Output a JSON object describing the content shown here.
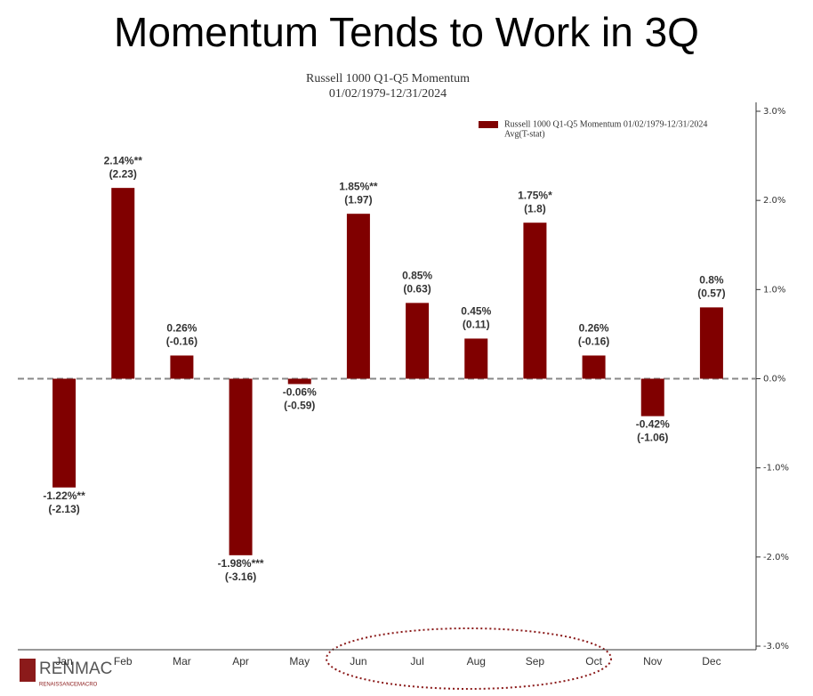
{
  "page_title": "Momentum Tends to Work in 3Q",
  "logo": {
    "name": "RENMAC",
    "tagline": "RENAISSANCEMACRO"
  },
  "chart_data": {
    "type": "bar",
    "title": "Russell 1000 Q1-Q5 Momentum",
    "subtitle": "01/02/1979-12/31/2024",
    "categories": [
      "Jan",
      "Feb",
      "Mar",
      "Apr",
      "May",
      "Jun",
      "Jul",
      "Aug",
      "Sep",
      "Oct",
      "Nov",
      "Dec"
    ],
    "series": [
      {
        "name": "Russell 1000 Q1-Q5 Momentum 01/02/1979-12/31/2024",
        "color": "#800000",
        "values": [
          -1.22,
          2.14,
          0.26,
          -1.98,
          -0.06,
          1.85,
          0.85,
          0.45,
          1.75,
          0.26,
          -0.42,
          0.8
        ],
        "value_labels": [
          "-1.22%**",
          "2.14%**",
          "0.26%",
          "-1.98%***",
          "-0.06%",
          "1.85%**",
          "0.85%",
          "0.45%",
          "1.75%*",
          "0.26%",
          "-0.42%",
          "0.8%"
        ]
      }
    ],
    "legend_note": "Avg(T-stat)",
    "t_stats": {
      "values": [
        -2.13,
        2.23,
        -0.16,
        -3.16,
        -0.59,
        1.97,
        0.63,
        0.11,
        1.8,
        -0.16,
        -1.06,
        0.57
      ],
      "value_labels": [
        "(-2.13)",
        "(2.23)",
        "(-0.16)",
        "(-3.16)",
        "(-0.59)",
        "(1.97)",
        "(0.63)",
        "(0.11)",
        "(1.8)",
        "(-0.16)",
        "(-1.06)",
        "(0.57)"
      ]
    },
    "ylim": [
      -3,
      3
    ],
    "yticks": [
      {
        "value": -3,
        "label": "-3.0%"
      },
      {
        "value": -2,
        "label": "-2.0%"
      },
      {
        "value": -1,
        "label": "-1.0%"
      },
      {
        "value": 0,
        "label": "0.0%"
      },
      {
        "value": 1,
        "label": "1.0%"
      },
      {
        "value": 2,
        "label": "2.0%"
      },
      {
        "value": 3,
        "label": "3.0%"
      }
    ],
    "y_axis_side": "right",
    "legend": "upper right"
  }
}
